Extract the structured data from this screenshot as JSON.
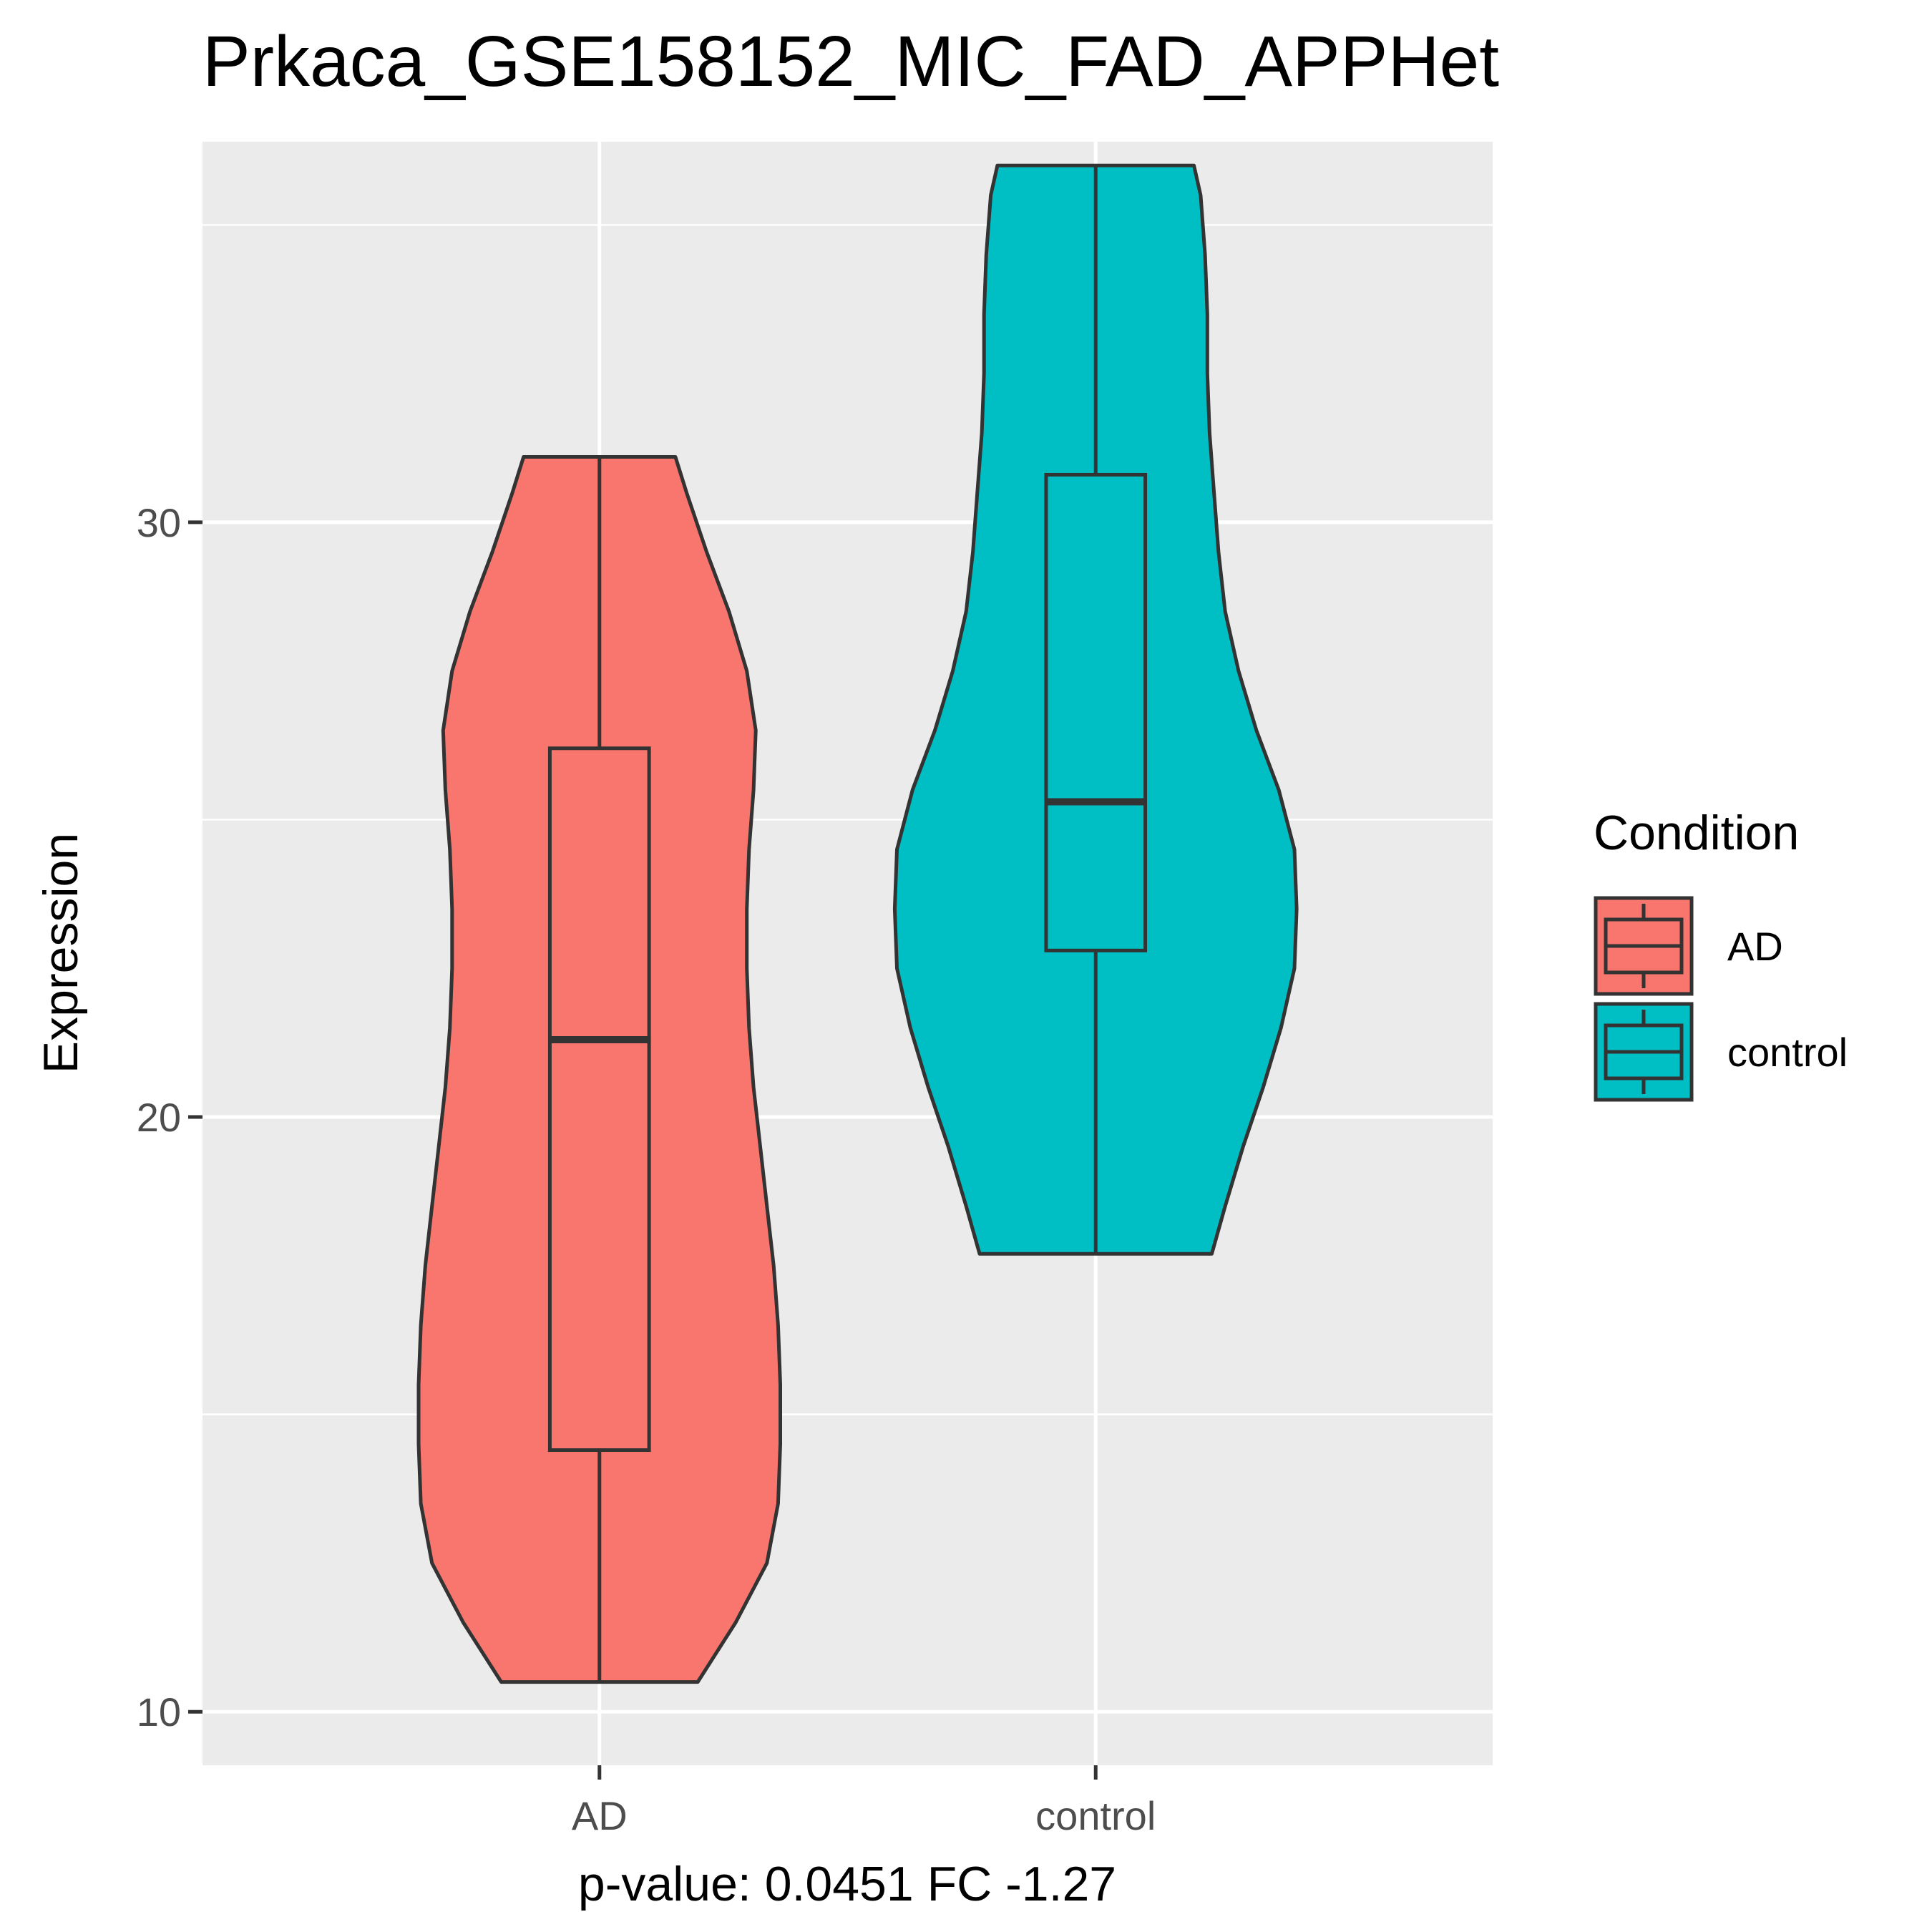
{
  "chart_data": {
    "type": "violin",
    "title": "Prkaca_GSE158152_MIC_FAD_APPHet",
    "xlabel": "p-value: 0.0451 FC -1.27",
    "ylabel": "Expression",
    "categories": [
      "AD",
      "control"
    ],
    "ylim": [
      9.1,
      36.4
    ],
    "yticks": [
      10,
      20,
      30
    ],
    "grid": true,
    "colors": {
      "AD": "#F8766D",
      "control": "#00BFC4",
      "outline": "#333333",
      "panel": "#EBEBEB",
      "grid": "#FFFFFF"
    },
    "legend": {
      "title": "Condition",
      "position": "right",
      "entries": [
        "AD",
        "control"
      ]
    },
    "series": [
      {
        "category": "AD",
        "box": {
          "min": 10.5,
          "q1": 14.4,
          "median": 21.3,
          "q3": 26.2,
          "max": 31.1
        },
        "violin_profile": [
          [
            10.5,
            0.44
          ],
          [
            11.5,
            0.61
          ],
          [
            12.5,
            0.75
          ],
          [
            13.5,
            0.8
          ],
          [
            14.5,
            0.81
          ],
          [
            15.5,
            0.81
          ],
          [
            16.5,
            0.8
          ],
          [
            17.5,
            0.78
          ],
          [
            18.5,
            0.75
          ],
          [
            19.5,
            0.72
          ],
          [
            20.5,
            0.69
          ],
          [
            21.5,
            0.67
          ],
          [
            22.5,
            0.66
          ],
          [
            23.5,
            0.66
          ],
          [
            24.5,
            0.67
          ],
          [
            25.5,
            0.69
          ],
          [
            26.5,
            0.7
          ],
          [
            27.5,
            0.66
          ],
          [
            28.5,
            0.58
          ],
          [
            29.5,
            0.48
          ],
          [
            30.5,
            0.39
          ],
          [
            31.1,
            0.34
          ]
        ]
      },
      {
        "category": "control",
        "box": {
          "min": 17.7,
          "q1": 22.8,
          "median": 25.3,
          "q3": 30.8,
          "max": 36.0
        },
        "violin_profile": [
          [
            17.7,
            0.52
          ],
          [
            18.5,
            0.58
          ],
          [
            19.5,
            0.66
          ],
          [
            20.5,
            0.75
          ],
          [
            21.5,
            0.83
          ],
          [
            22.5,
            0.89
          ],
          [
            23.5,
            0.9
          ],
          [
            24.5,
            0.89
          ],
          [
            25.5,
            0.82
          ],
          [
            26.5,
            0.72
          ],
          [
            27.5,
            0.64
          ],
          [
            28.5,
            0.58
          ],
          [
            29.5,
            0.55
          ],
          [
            30.5,
            0.53
          ],
          [
            31.5,
            0.51
          ],
          [
            32.5,
            0.5
          ],
          [
            33.5,
            0.5
          ],
          [
            34.5,
            0.49
          ],
          [
            35.5,
            0.47
          ],
          [
            36.0,
            0.44
          ]
        ]
      }
    ]
  }
}
